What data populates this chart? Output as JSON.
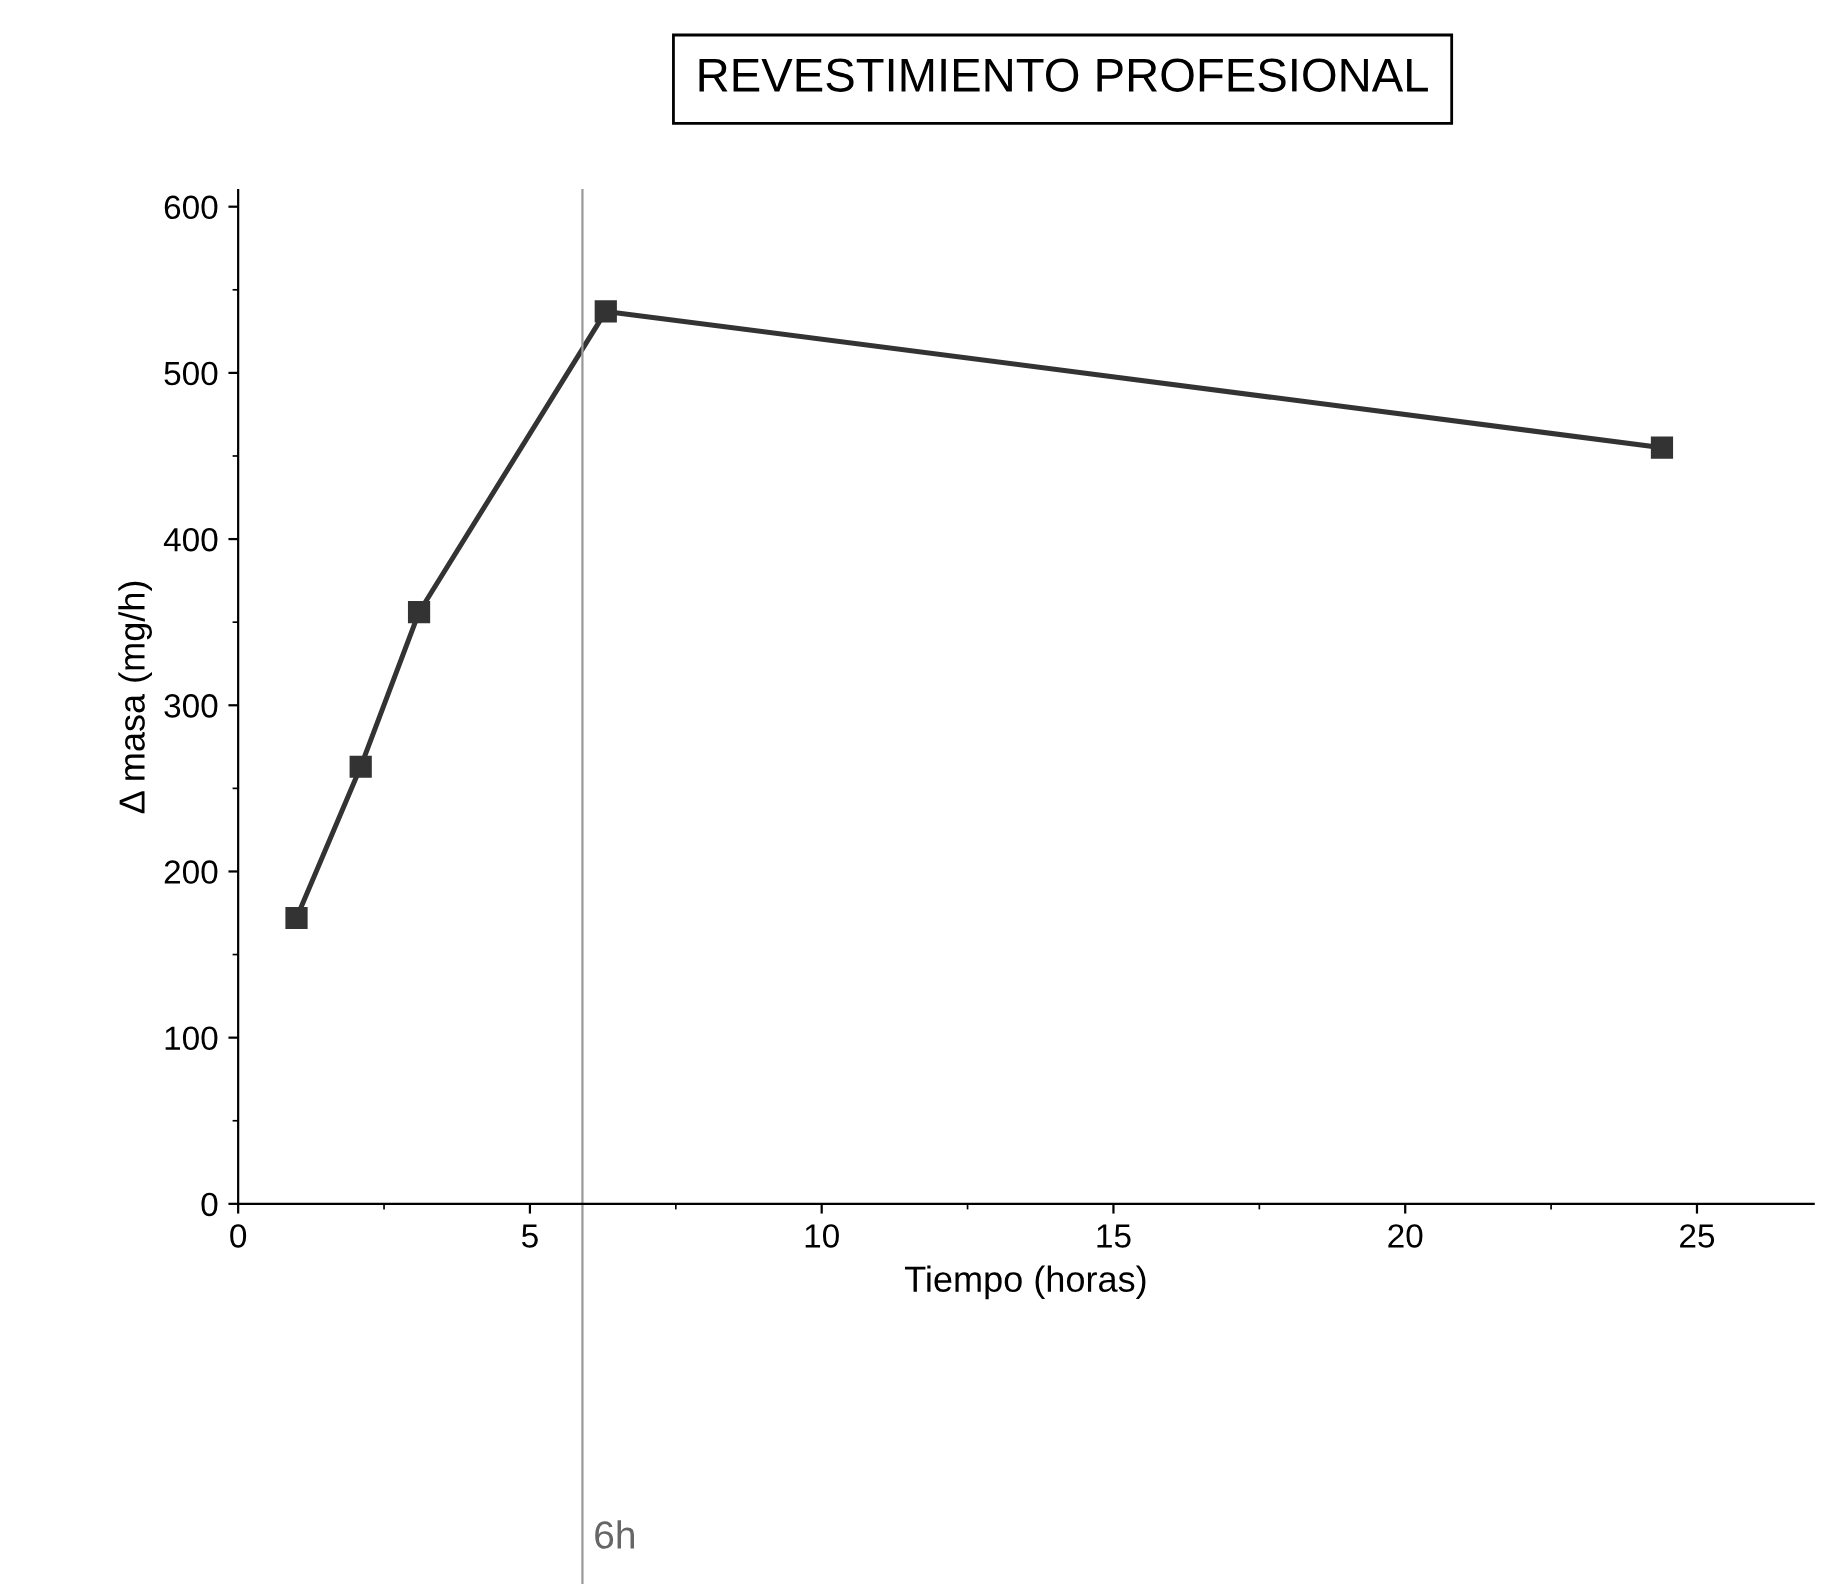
{
  "chart_data": {
    "type": "line",
    "title": "REVESTIMIENTO PROFESIONAL",
    "xlabel": "Tiempo (horas)",
    "ylabel": "Δ masa (mg/h)",
    "x": [
      1.0,
      2.1,
      3.1,
      6.3,
      24.4
    ],
    "series": [
      {
        "color": "#333333",
        "values": [
          172,
          263,
          356,
          537,
          455
        ]
      }
    ],
    "xlim": [
      0,
      27
    ],
    "ylim": [
      0,
      610
    ],
    "xticks": [
      0,
      5,
      10,
      15,
      20,
      25
    ],
    "yticks": [
      0,
      100,
      200,
      300,
      400,
      500,
      600
    ],
    "ref_lines": [
      {
        "axis": "x",
        "value": 5.9,
        "label": "6h",
        "color": "#999999"
      }
    ],
    "marker": "square",
    "line_style": "solid",
    "grid": false,
    "legend": false
  }
}
